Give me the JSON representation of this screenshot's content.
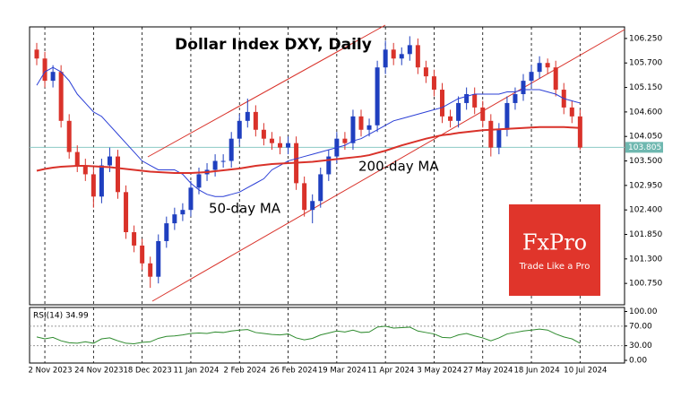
{
  "chart_data": [
    {
      "type": "candlestick",
      "title": "Dollar Index DXY, Daily",
      "logo_text": "FxPro",
      "logo_tagline": "Trade Like a Pro",
      "up_color": "#1f3fbf",
      "down_color": "#d9322a",
      "categories": [
        null,
        "2 Nov 2023",
        null,
        null,
        null,
        null,
        null,
        "24 Nov 2023",
        null,
        null,
        null,
        null,
        null,
        "18 Dec 2023",
        null,
        null,
        null,
        null,
        null,
        "11 Jan 2024",
        null,
        null,
        null,
        null,
        null,
        "2 Feb 2024",
        null,
        null,
        null,
        null,
        null,
        "26 Feb 2024",
        null,
        null,
        null,
        null,
        null,
        "19 Mar 2024",
        null,
        null,
        null,
        null,
        null,
        "11 Apr 2024",
        null,
        null,
        null,
        null,
        null,
        "3 May 2024",
        null,
        null,
        null,
        null,
        null,
        "27 May 2024",
        null,
        null,
        null,
        null,
        null,
        "18 Jun 2024",
        null,
        null,
        null,
        null,
        null,
        "10 Jul 2024"
      ],
      "candles": [
        [
          106.0,
          106.15,
          105.65,
          105.8
        ],
        [
          105.8,
          105.95,
          105.15,
          105.3
        ],
        [
          105.3,
          105.65,
          105.15,
          105.5
        ],
        [
          105.5,
          105.65,
          104.25,
          104.4
        ],
        [
          104.4,
          104.55,
          103.55,
          103.7
        ],
        [
          103.7,
          103.85,
          103.25,
          103.4
        ],
        [
          103.4,
          103.55,
          103.05,
          103.2
        ],
        [
          103.2,
          103.35,
          102.45,
          102.7
        ],
        [
          102.7,
          103.55,
          102.55,
          103.4
        ],
        [
          103.4,
          103.8,
          103.25,
          103.6
        ],
        [
          103.6,
          103.75,
          102.65,
          102.8
        ],
        [
          102.8,
          102.95,
          101.75,
          101.9
        ],
        [
          101.9,
          102.05,
          101.45,
          101.6
        ],
        [
          101.6,
          101.75,
          101.05,
          101.2
        ],
        [
          101.2,
          101.35,
          100.65,
          100.9
        ],
        [
          100.9,
          101.85,
          100.75,
          101.7
        ],
        [
          101.7,
          102.25,
          101.55,
          102.1
        ],
        [
          102.1,
          102.45,
          101.95,
          102.3
        ],
        [
          102.3,
          102.55,
          102.15,
          102.4
        ],
        [
          102.4,
          103.05,
          102.25,
          102.9
        ],
        [
          102.9,
          103.35,
          102.75,
          103.2
        ],
        [
          103.2,
          103.45,
          103.05,
          103.3
        ],
        [
          103.3,
          103.65,
          103.15,
          103.5
        ],
        [
          103.5,
          103.65,
          103.35,
          103.5
        ],
        [
          103.5,
          104.15,
          103.35,
          104.0
        ],
        [
          104.0,
          104.55,
          103.85,
          104.4
        ],
        [
          104.4,
          104.9,
          104.25,
          104.6
        ],
        [
          104.6,
          104.75,
          104.05,
          104.2
        ],
        [
          104.2,
          104.35,
          103.85,
          104.0
        ],
        [
          104.0,
          104.15,
          103.75,
          103.9
        ],
        [
          103.9,
          104.05,
          103.65,
          103.8
        ],
        [
          103.8,
          104.05,
          103.65,
          103.9
        ],
        [
          103.9,
          104.05,
          102.85,
          103.0
        ],
        [
          103.0,
          103.15,
          102.25,
          102.4
        ],
        [
          102.4,
          102.75,
          102.1,
          102.6
        ],
        [
          102.6,
          103.35,
          102.45,
          103.2
        ],
        [
          103.2,
          103.75,
          103.05,
          103.6
        ],
        [
          103.6,
          104.15,
          103.45,
          104.0
        ],
        [
          104.0,
          104.15,
          103.75,
          103.9
        ],
        [
          103.9,
          104.65,
          103.75,
          104.5
        ],
        [
          104.5,
          104.65,
          104.05,
          104.2
        ],
        [
          104.2,
          104.45,
          104.05,
          104.3
        ],
        [
          104.3,
          105.75,
          104.15,
          105.6
        ],
        [
          105.6,
          106.2,
          105.45,
          106.0
        ],
        [
          106.0,
          106.15,
          105.65,
          105.8
        ],
        [
          105.8,
          106.05,
          105.65,
          105.9
        ],
        [
          105.9,
          106.3,
          105.75,
          106.1
        ],
        [
          106.1,
          106.25,
          105.45,
          105.6
        ],
        [
          105.6,
          105.75,
          105.25,
          105.4
        ],
        [
          105.4,
          105.55,
          104.95,
          105.1
        ],
        [
          105.1,
          105.25,
          104.35,
          104.5
        ],
        [
          104.5,
          104.65,
          104.25,
          104.4
        ],
        [
          104.4,
          104.95,
          104.25,
          104.8
        ],
        [
          104.8,
          105.15,
          104.65,
          105.0
        ],
        [
          105.0,
          105.15,
          104.55,
          104.7
        ],
        [
          104.7,
          104.85,
          104.25,
          104.4
        ],
        [
          104.4,
          104.55,
          103.6,
          103.8
        ],
        [
          103.8,
          104.35,
          103.65,
          104.2
        ],
        [
          104.2,
          104.95,
          104.05,
          104.8
        ],
        [
          104.8,
          105.15,
          104.65,
          105.0
        ],
        [
          105.0,
          105.45,
          104.85,
          105.3
        ],
        [
          105.3,
          105.65,
          105.15,
          105.5
        ],
        [
          105.5,
          105.85,
          105.35,
          105.7
        ],
        [
          105.7,
          105.8,
          105.45,
          105.6
        ],
        [
          105.6,
          105.75,
          104.95,
          105.1
        ],
        [
          105.1,
          105.25,
          104.55,
          104.7
        ],
        [
          104.7,
          104.85,
          104.35,
          104.5
        ],
        [
          104.5,
          104.65,
          103.75,
          103.8
        ]
      ],
      "series": [
        {
          "name": "50-day MA",
          "color": "#2b3fd6",
          "values": [
            105.2,
            105.5,
            105.6,
            105.5,
            105.3,
            105.0,
            104.8,
            104.6,
            104.5,
            104.3,
            104.1,
            103.9,
            103.7,
            103.5,
            103.4,
            103.3,
            103.3,
            103.3,
            103.2,
            103.0,
            102.85,
            102.75,
            102.7,
            102.7,
            102.75,
            102.8,
            102.9,
            103.0,
            103.1,
            103.3,
            103.4,
            103.5,
            103.55,
            103.6,
            103.65,
            103.7,
            103.75,
            103.8,
            103.85,
            103.95,
            104.0,
            104.1,
            104.2,
            104.3,
            104.4,
            104.45,
            104.5,
            104.55,
            104.6,
            104.65,
            104.7,
            104.8,
            104.9,
            104.95,
            105.0,
            105.0,
            105.0,
            105.0,
            105.05,
            105.05,
            105.1,
            105.1,
            105.1,
            105.05,
            105.0,
            104.9,
            104.85,
            104.8
          ]
        },
        {
          "name": "200-day MA",
          "color": "#d9322a",
          "values": [
            103.28,
            103.32,
            103.35,
            103.37,
            103.38,
            103.39,
            103.39,
            103.38,
            103.37,
            103.36,
            103.34,
            103.32,
            103.3,
            103.28,
            103.26,
            103.25,
            103.24,
            103.23,
            103.23,
            103.23,
            103.24,
            103.25,
            103.27,
            103.29,
            103.31,
            103.33,
            103.36,
            103.39,
            103.41,
            103.43,
            103.44,
            103.45,
            103.46,
            103.47,
            103.48,
            103.5,
            103.52,
            103.54,
            103.56,
            103.58,
            103.6,
            103.63,
            103.68,
            103.73,
            103.79,
            103.85,
            103.9,
            103.95,
            104.0,
            104.04,
            104.08,
            104.1,
            104.13,
            104.15,
            104.17,
            104.19,
            104.2,
            104.21,
            104.22,
            104.23,
            104.24,
            104.25,
            104.26,
            104.26,
            104.26,
            104.26,
            104.25,
            104.24
          ]
        }
      ],
      "last_price": {
        "value": 103.805,
        "label": "103.805"
      },
      "ylim": [
        100.27,
        106.51
      ],
      "yticks": [
        {
          "value": 106.25,
          "label": "106.250"
        },
        {
          "value": 105.7,
          "label": "105.700"
        },
        {
          "value": 105.15,
          "label": "105.150"
        },
        {
          "value": 104.6,
          "label": "104.600"
        },
        {
          "value": 104.05,
          "label": "104.050"
        },
        {
          "value": 103.5,
          "label": "103.500"
        },
        {
          "value": 102.95,
          "label": "102.950"
        },
        {
          "value": 102.4,
          "label": "102.400"
        },
        {
          "value": 101.85,
          "label": "101.850"
        },
        {
          "value": 101.3,
          "label": "101.300"
        },
        {
          "value": 100.75,
          "label": "100.750"
        }
      ]
    },
    {
      "type": "line",
      "title": "RSI(14) 34.99",
      "color": "#2e8b2e",
      "values": [
        48,
        44,
        47,
        40,
        36,
        35,
        38,
        35,
        44,
        46,
        40,
        35,
        34,
        37,
        38,
        45,
        49,
        50,
        52,
        55,
        56,
        55,
        58,
        57,
        60,
        62,
        63,
        57,
        55,
        53,
        52,
        54,
        46,
        42,
        45,
        52,
        56,
        60,
        58,
        62,
        57,
        58,
        68,
        70,
        66,
        67,
        68,
        60,
        57,
        54,
        47,
        46,
        52,
        55,
        50,
        46,
        40,
        46,
        54,
        57,
        60,
        62,
        64,
        62,
        54,
        48,
        44,
        34.99
      ],
      "ylim": [
        0,
        100
      ],
      "yticks": [
        {
          "value": 100,
          "label": "100.00"
        },
        {
          "value": 70,
          "label": "70.00"
        },
        {
          "value": 30,
          "label": "30.00"
        },
        {
          "value": 0,
          "label": "0.00"
        }
      ]
    }
  ]
}
